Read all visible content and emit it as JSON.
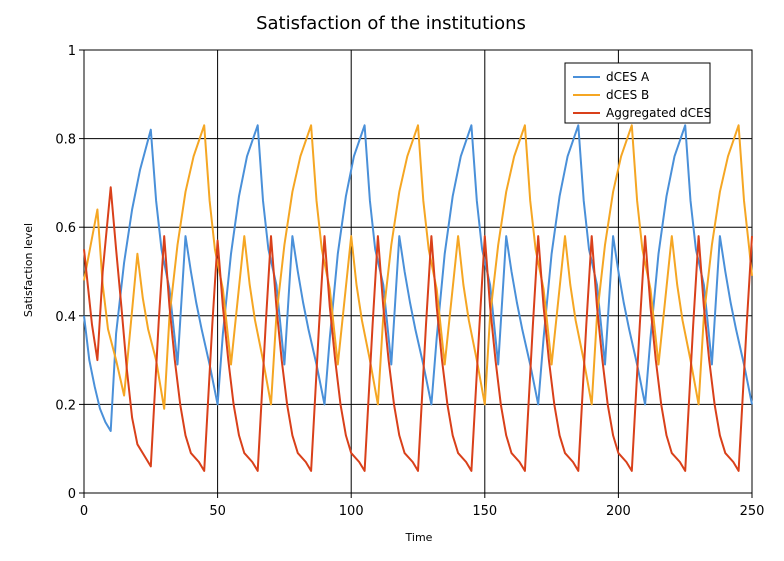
{
  "chart_data": {
    "type": "line",
    "title": "Satisfaction of the institutions",
    "xlabel": "Time",
    "ylabel": "Satisfaction level",
    "xlim": [
      0,
      250
    ],
    "ylim": [
      0,
      1
    ],
    "x_ticks": [
      "0",
      "50",
      "100",
      "150",
      "200",
      "250"
    ],
    "y_ticks": [
      "0",
      "0.2",
      "0.4",
      "0.6",
      "0.8",
      "1"
    ],
    "grid": true,
    "legend_position": "top-right",
    "series": [
      {
        "name": "dCES A",
        "color": "#4a90d9",
        "points": [
          [
            0,
            0.4
          ],
          [
            2,
            0.3
          ],
          [
            4,
            0.24
          ],
          [
            6,
            0.19
          ],
          [
            8,
            0.16
          ],
          [
            10,
            0.14
          ],
          [
            12,
            0.36
          ],
          [
            15,
            0.52
          ],
          [
            18,
            0.64
          ],
          [
            21,
            0.73
          ],
          [
            25,
            0.82
          ],
          [
            27,
            0.66
          ],
          [
            29,
            0.55
          ],
          [
            32,
            0.46
          ],
          [
            35,
            0.29
          ],
          [
            38,
            0.58
          ],
          [
            40,
            0.5
          ],
          [
            42,
            0.43
          ],
          [
            44,
            0.37
          ],
          [
            47,
            0.29
          ],
          [
            50,
            0.2
          ],
          [
            52,
            0.36
          ],
          [
            55,
            0.54
          ],
          [
            58,
            0.67
          ],
          [
            61,
            0.76
          ],
          [
            65,
            0.83
          ],
          [
            67,
            0.66
          ],
          [
            69,
            0.55
          ],
          [
            72,
            0.47
          ],
          [
            75,
            0.29
          ],
          [
            78,
            0.58
          ],
          [
            80,
            0.5
          ],
          [
            82,
            0.43
          ],
          [
            84,
            0.37
          ],
          [
            87,
            0.29
          ],
          [
            90,
            0.2
          ],
          [
            92,
            0.35
          ],
          [
            95,
            0.54
          ],
          [
            98,
            0.67
          ],
          [
            101,
            0.76
          ],
          [
            105,
            0.83
          ],
          [
            107,
            0.66
          ],
          [
            109,
            0.55
          ],
          [
            112,
            0.47
          ],
          [
            115,
            0.29
          ],
          [
            118,
            0.58
          ],
          [
            120,
            0.5
          ],
          [
            122,
            0.43
          ],
          [
            124,
            0.37
          ],
          [
            127,
            0.29
          ],
          [
            130,
            0.2
          ],
          [
            132,
            0.35
          ],
          [
            135,
            0.54
          ],
          [
            138,
            0.67
          ],
          [
            141,
            0.76
          ],
          [
            145,
            0.83
          ],
          [
            147,
            0.66
          ],
          [
            149,
            0.55
          ],
          [
            152,
            0.47
          ],
          [
            155,
            0.29
          ],
          [
            158,
            0.58
          ],
          [
            160,
            0.5
          ],
          [
            162,
            0.43
          ],
          [
            164,
            0.37
          ],
          [
            167,
            0.29
          ],
          [
            170,
            0.2
          ],
          [
            172,
            0.35
          ],
          [
            175,
            0.54
          ],
          [
            178,
            0.67
          ],
          [
            181,
            0.76
          ],
          [
            185,
            0.83
          ],
          [
            187,
            0.66
          ],
          [
            189,
            0.55
          ],
          [
            192,
            0.47
          ],
          [
            195,
            0.29
          ],
          [
            198,
            0.58
          ],
          [
            200,
            0.5
          ],
          [
            202,
            0.43
          ],
          [
            204,
            0.37
          ],
          [
            207,
            0.29
          ],
          [
            210,
            0.2
          ],
          [
            212,
            0.35
          ],
          [
            215,
            0.54
          ],
          [
            218,
            0.67
          ],
          [
            221,
            0.76
          ],
          [
            225,
            0.83
          ],
          [
            227,
            0.66
          ],
          [
            229,
            0.55
          ],
          [
            232,
            0.47
          ],
          [
            235,
            0.29
          ],
          [
            238,
            0.58
          ],
          [
            240,
            0.5
          ],
          [
            242,
            0.43
          ],
          [
            244,
            0.37
          ],
          [
            247,
            0.29
          ],
          [
            250,
            0.2
          ]
        ]
      },
      {
        "name": "dCES B",
        "color": "#f5a623",
        "points": [
          [
            0,
            0.48
          ],
          [
            5,
            0.64
          ],
          [
            7,
            0.47
          ],
          [
            9,
            0.37
          ],
          [
            12,
            0.3
          ],
          [
            15,
            0.22
          ],
          [
            20,
            0.54
          ],
          [
            22,
            0.44
          ],
          [
            24,
            0.37
          ],
          [
            27,
            0.3
          ],
          [
            30,
            0.19
          ],
          [
            32,
            0.4
          ],
          [
            35,
            0.56
          ],
          [
            38,
            0.68
          ],
          [
            41,
            0.76
          ],
          [
            45,
            0.83
          ],
          [
            47,
            0.66
          ],
          [
            49,
            0.55
          ],
          [
            52,
            0.46
          ],
          [
            55,
            0.29
          ],
          [
            60,
            0.58
          ],
          [
            62,
            0.47
          ],
          [
            64,
            0.39
          ],
          [
            67,
            0.3
          ],
          [
            70,
            0.2
          ],
          [
            72,
            0.4
          ],
          [
            75,
            0.56
          ],
          [
            78,
            0.68
          ],
          [
            81,
            0.76
          ],
          [
            85,
            0.83
          ],
          [
            87,
            0.66
          ],
          [
            89,
            0.55
          ],
          [
            92,
            0.46
          ],
          [
            95,
            0.29
          ],
          [
            100,
            0.58
          ],
          [
            102,
            0.47
          ],
          [
            104,
            0.39
          ],
          [
            107,
            0.3
          ],
          [
            110,
            0.2
          ],
          [
            112,
            0.4
          ],
          [
            115,
            0.56
          ],
          [
            118,
            0.68
          ],
          [
            121,
            0.76
          ],
          [
            125,
            0.83
          ],
          [
            127,
            0.66
          ],
          [
            129,
            0.55
          ],
          [
            132,
            0.46
          ],
          [
            135,
            0.29
          ],
          [
            140,
            0.58
          ],
          [
            142,
            0.47
          ],
          [
            144,
            0.39
          ],
          [
            147,
            0.3
          ],
          [
            150,
            0.2
          ],
          [
            152,
            0.4
          ],
          [
            155,
            0.56
          ],
          [
            158,
            0.68
          ],
          [
            161,
            0.76
          ],
          [
            165,
            0.83
          ],
          [
            167,
            0.66
          ],
          [
            169,
            0.55
          ],
          [
            172,
            0.46
          ],
          [
            175,
            0.29
          ],
          [
            180,
            0.58
          ],
          [
            182,
            0.47
          ],
          [
            184,
            0.39
          ],
          [
            187,
            0.3
          ],
          [
            190,
            0.2
          ],
          [
            192,
            0.4
          ],
          [
            195,
            0.56
          ],
          [
            198,
            0.68
          ],
          [
            201,
            0.76
          ],
          [
            205,
            0.83
          ],
          [
            207,
            0.66
          ],
          [
            209,
            0.55
          ],
          [
            212,
            0.46
          ],
          [
            215,
            0.29
          ],
          [
            220,
            0.58
          ],
          [
            222,
            0.47
          ],
          [
            224,
            0.39
          ],
          [
            227,
            0.3
          ],
          [
            230,
            0.2
          ],
          [
            232,
            0.4
          ],
          [
            235,
            0.56
          ],
          [
            238,
            0.68
          ],
          [
            241,
            0.76
          ],
          [
            245,
            0.83
          ],
          [
            247,
            0.66
          ],
          [
            249,
            0.55
          ],
          [
            250,
            0.49
          ]
        ]
      },
      {
        "name": "Aggregated dCES",
        "color": "#d9401a",
        "points": [
          [
            0,
            0.55
          ],
          [
            3,
            0.38
          ],
          [
            5,
            0.3
          ],
          [
            7,
            0.5
          ],
          [
            10,
            0.69
          ],
          [
            12,
            0.55
          ],
          [
            14,
            0.42
          ],
          [
            16,
            0.28
          ],
          [
            18,
            0.17
          ],
          [
            20,
            0.11
          ],
          [
            23,
            0.08
          ],
          [
            25,
            0.06
          ],
          [
            28,
            0.39
          ],
          [
            30,
            0.58
          ],
          [
            32,
            0.42
          ],
          [
            34,
            0.3
          ],
          [
            36,
            0.2
          ],
          [
            38,
            0.13
          ],
          [
            40,
            0.09
          ],
          [
            43,
            0.07
          ],
          [
            45,
            0.05
          ],
          [
            48,
            0.38
          ],
          [
            50,
            0.57
          ],
          [
            52,
            0.42
          ],
          [
            54,
            0.3
          ],
          [
            56,
            0.2
          ],
          [
            58,
            0.13
          ],
          [
            60,
            0.09
          ],
          [
            63,
            0.07
          ],
          [
            65,
            0.05
          ],
          [
            68,
            0.38
          ],
          [
            70,
            0.58
          ],
          [
            72,
            0.42
          ],
          [
            74,
            0.3
          ],
          [
            76,
            0.2
          ],
          [
            78,
            0.13
          ],
          [
            80,
            0.09
          ],
          [
            83,
            0.07
          ],
          [
            85,
            0.05
          ],
          [
            88,
            0.38
          ],
          [
            90,
            0.58
          ],
          [
            92,
            0.42
          ],
          [
            94,
            0.3
          ],
          [
            96,
            0.2
          ],
          [
            98,
            0.13
          ],
          [
            100,
            0.09
          ],
          [
            103,
            0.07
          ],
          [
            105,
            0.05
          ],
          [
            108,
            0.38
          ],
          [
            110,
            0.58
          ],
          [
            112,
            0.42
          ],
          [
            114,
            0.3
          ],
          [
            116,
            0.2
          ],
          [
            118,
            0.13
          ],
          [
            120,
            0.09
          ],
          [
            123,
            0.07
          ],
          [
            125,
            0.05
          ],
          [
            128,
            0.38
          ],
          [
            130,
            0.58
          ],
          [
            132,
            0.42
          ],
          [
            134,
            0.3
          ],
          [
            136,
            0.2
          ],
          [
            138,
            0.13
          ],
          [
            140,
            0.09
          ],
          [
            143,
            0.07
          ],
          [
            145,
            0.05
          ],
          [
            148,
            0.38
          ],
          [
            150,
            0.58
          ],
          [
            152,
            0.42
          ],
          [
            154,
            0.3
          ],
          [
            156,
            0.2
          ],
          [
            158,
            0.13
          ],
          [
            160,
            0.09
          ],
          [
            163,
            0.07
          ],
          [
            165,
            0.05
          ],
          [
            168,
            0.38
          ],
          [
            170,
            0.58
          ],
          [
            172,
            0.42
          ],
          [
            174,
            0.3
          ],
          [
            176,
            0.2
          ],
          [
            178,
            0.13
          ],
          [
            180,
            0.09
          ],
          [
            183,
            0.07
          ],
          [
            185,
            0.05
          ],
          [
            188,
            0.38
          ],
          [
            190,
            0.58
          ],
          [
            192,
            0.42
          ],
          [
            194,
            0.3
          ],
          [
            196,
            0.2
          ],
          [
            198,
            0.13
          ],
          [
            200,
            0.09
          ],
          [
            203,
            0.07
          ],
          [
            205,
            0.05
          ],
          [
            208,
            0.38
          ],
          [
            210,
            0.58
          ],
          [
            212,
            0.42
          ],
          [
            214,
            0.3
          ],
          [
            216,
            0.2
          ],
          [
            218,
            0.13
          ],
          [
            220,
            0.09
          ],
          [
            223,
            0.07
          ],
          [
            225,
            0.05
          ],
          [
            228,
            0.38
          ],
          [
            230,
            0.58
          ],
          [
            232,
            0.42
          ],
          [
            234,
            0.3
          ],
          [
            236,
            0.2
          ],
          [
            238,
            0.13
          ],
          [
            240,
            0.09
          ],
          [
            243,
            0.07
          ],
          [
            245,
            0.05
          ],
          [
            248,
            0.38
          ],
          [
            250,
            0.58
          ]
        ]
      }
    ]
  }
}
